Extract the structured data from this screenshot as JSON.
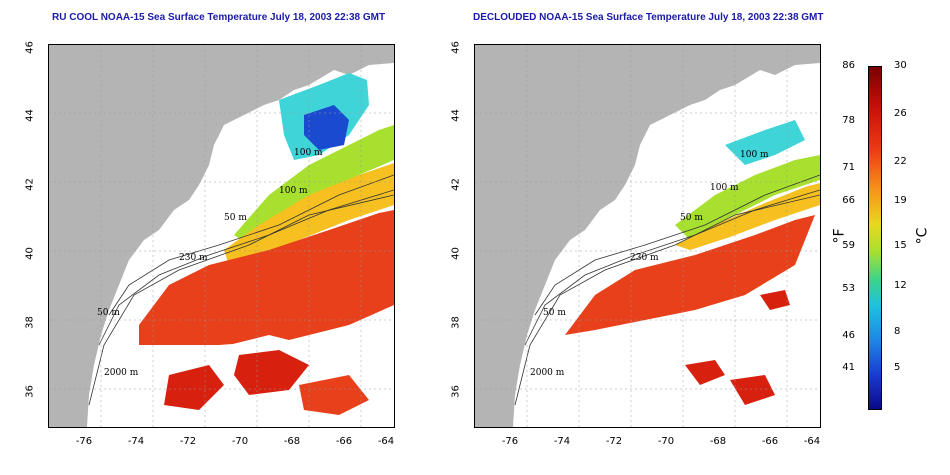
{
  "titles": {
    "left": "RU COOL NOAA-15 Sea Surface Temperature July 18, 2003 22:38 GMT",
    "right": "DECLOUDED NOAA-15 Sea Surface Temperature July 18, 2003 22:38 GMT"
  },
  "lat_ticks": [
    "46",
    "44",
    "42",
    "40",
    "38",
    "36"
  ],
  "lon_ticks": [
    "-76",
    "-74",
    "-72",
    "-70",
    "-68",
    "-66",
    "-64"
  ],
  "contour_labels": [
    "100 m",
    "100 m",
    "50 m",
    "230 m",
    "50 m",
    "2000 m"
  ],
  "colorbar": {
    "fahrenheit": [
      "86",
      "78",
      "71",
      "66",
      "59",
      "53",
      "46",
      "41"
    ],
    "celsius": [
      "30",
      "26",
      "22",
      "19",
      "15",
      "12",
      "8",
      "5"
    ],
    "unit_f": "°F",
    "unit_c": "°C"
  },
  "colors": {
    "land": "#b4b4b4",
    "title": "#1a1aa8",
    "warm": "#e8401a",
    "cold": "#1e86e6"
  }
}
